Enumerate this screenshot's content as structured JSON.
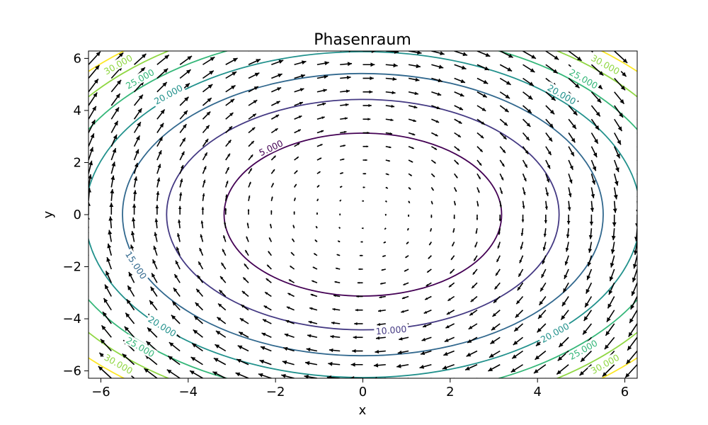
{
  "chart_data": {
    "type": "contour-quiver",
    "title": "Phasenraum",
    "xlabel": "x",
    "ylabel": "y",
    "xlim": [
      -6.2832,
      6.2832
    ],
    "ylim": [
      -6.2832,
      6.2832
    ],
    "xticks": [
      -6,
      -4,
      -2,
      0,
      2,
      4,
      6
    ],
    "yticks": [
      -6,
      -4,
      -2,
      0,
      2,
      4,
      6
    ],
    "xtick_labels": [
      "−6",
      "−4",
      "−2",
      "0",
      "2",
      "4",
      "6"
    ],
    "ytick_labels": [
      "−6",
      "−4",
      "−2",
      "0",
      "2",
      "4",
      "6"
    ],
    "energy_function": "0.5*x^2 + 0.5*y^2 (level set form, scaled per axis)",
    "contour_levels": [
      5000,
      10000,
      15000,
      20000,
      25000,
      30000,
      35000
    ],
    "contour_colors": [
      "#440154",
      "#443983",
      "#31688e",
      "#21918c",
      "#35b779",
      "#90d743",
      "#fde725"
    ],
    "contour_labels": [
      {
        "level": 5000,
        "text": "5.000",
        "x": -2.1,
        "y": 2.55
      },
      {
        "level": 10000,
        "text": "10.000",
        "x": 0.65,
        "y": -4.45
      },
      {
        "level": 15000,
        "text": "15.000",
        "x": -5.2,
        "y": -1.95
      },
      {
        "level": 20000,
        "text": "20.000",
        "x": -4.45,
        "y": 4.6
      },
      {
        "level": 20000,
        "text": "20.000",
        "x": 4.55,
        "y": 4.6
      },
      {
        "level": 20000,
        "text": "20.000",
        "x": -4.6,
        "y": -4.3
      },
      {
        "level": 20000,
        "text": "20.000",
        "x": 4.4,
        "y": -4.55
      },
      {
        "level": 25000,
        "text": "25.000",
        "x": -5.1,
        "y": 5.2
      },
      {
        "level": 25000,
        "text": "25.000",
        "x": 5.05,
        "y": 5.2
      },
      {
        "level": 25000,
        "text": "25.000",
        "x": -5.1,
        "y": -5.1
      },
      {
        "level": 25000,
        "text": "25.000",
        "x": 5.05,
        "y": -5.2
      },
      {
        "level": 30000,
        "text": "30.000",
        "x": -5.6,
        "y": 5.75
      },
      {
        "level": 30000,
        "text": "30.000",
        "x": 5.55,
        "y": 5.75
      },
      {
        "level": 30000,
        "text": "30.000",
        "x": -5.6,
        "y": -5.75
      },
      {
        "level": 30000,
        "text": "30.000",
        "x": 5.55,
        "y": -5.75
      }
    ],
    "quiver": {
      "field": "dx/dt = y, dy/dt = -x",
      "grid_x_count": 25,
      "grid_y_count": 25,
      "arrow_color": "#000000"
    },
    "grid": false,
    "legend": "none"
  }
}
